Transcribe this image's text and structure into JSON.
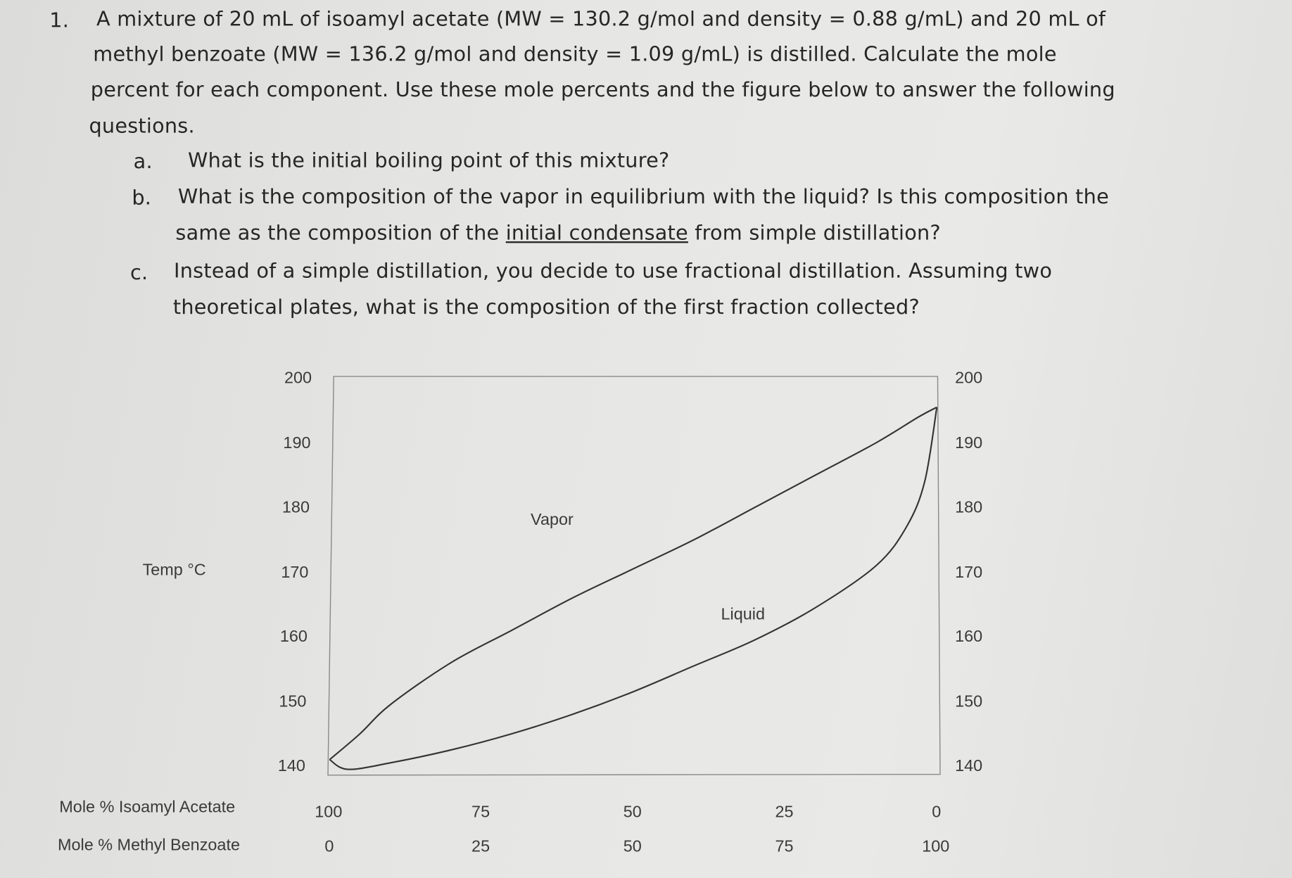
{
  "question": {
    "number": "1.",
    "lines": [
      "A mixture of 20 mL of isoamyl acetate (MW = 130.2 g/mol and density = 0.88 g/mL) and 20 mL of",
      "methyl benzoate (MW = 136.2 g/mol and density = 1.09 g/mL) is distilled.  Calculate the mole",
      "percent for each component.  Use these mole percents and the figure below to answer the following",
      "questions."
    ],
    "parts": [
      {
        "label": "a.",
        "lines": [
          "What is the initial boiling point of this mixture?"
        ]
      },
      {
        "label": "b.",
        "line1": "What is the composition of the vapor in equilibrium with the liquid? Is this composition the",
        "line2_pre": "same as the composition of the ",
        "line2_underlined": "initial condensate",
        "line2_post": " from simple distillation?"
      },
      {
        "label": "c.",
        "lines": [
          "Instead of a simple distillation, you decide to use fractional distillation.  Assuming two",
          "theoretical plates, what is the composition of the first fraction collected?"
        ]
      }
    ]
  },
  "chart_data": {
    "type": "line",
    "ylabel": "Temp °C",
    "xlabel_top": "Mole % Isoamyl Acetate",
    "xlabel_bottom": "Mole % Methyl Benzoate",
    "ylim": [
      140,
      200
    ],
    "yticks": [
      "200",
      "190",
      "180",
      "170",
      "160",
      "150",
      "140"
    ],
    "xticks_isoamyl": [
      "100",
      "75",
      "50",
      "25",
      "0"
    ],
    "xticks_benzoate": [
      "0",
      "25",
      "50",
      "75",
      "100"
    ],
    "xlim_isoamyl": [
      100,
      0
    ],
    "grid": false,
    "curve_labels": {
      "vapor": "Vapor",
      "liquid": "Liquid"
    },
    "series": [
      {
        "name": "Vapor",
        "x_mole_pct_isoamyl": [
          100,
          95,
          90,
          80,
          70,
          60,
          50,
          40,
          30,
          20,
          10,
          3,
          0
        ],
        "y": [
          141,
          145,
          149.5,
          156,
          161,
          166,
          170.5,
          175,
          180,
          185,
          190,
          194,
          195.5
        ]
      },
      {
        "name": "Liquid",
        "x_mole_pct_isoamyl": [
          100,
          97,
          90,
          80,
          70,
          60,
          50,
          40,
          30,
          20,
          10,
          5,
          2,
          0
        ],
        "y": [
          141,
          139.5,
          140.5,
          142.5,
          145,
          148,
          151.5,
          155.5,
          159.5,
          164.5,
          171,
          177,
          184,
          195.5
        ]
      }
    ],
    "line_color": "#333333"
  }
}
